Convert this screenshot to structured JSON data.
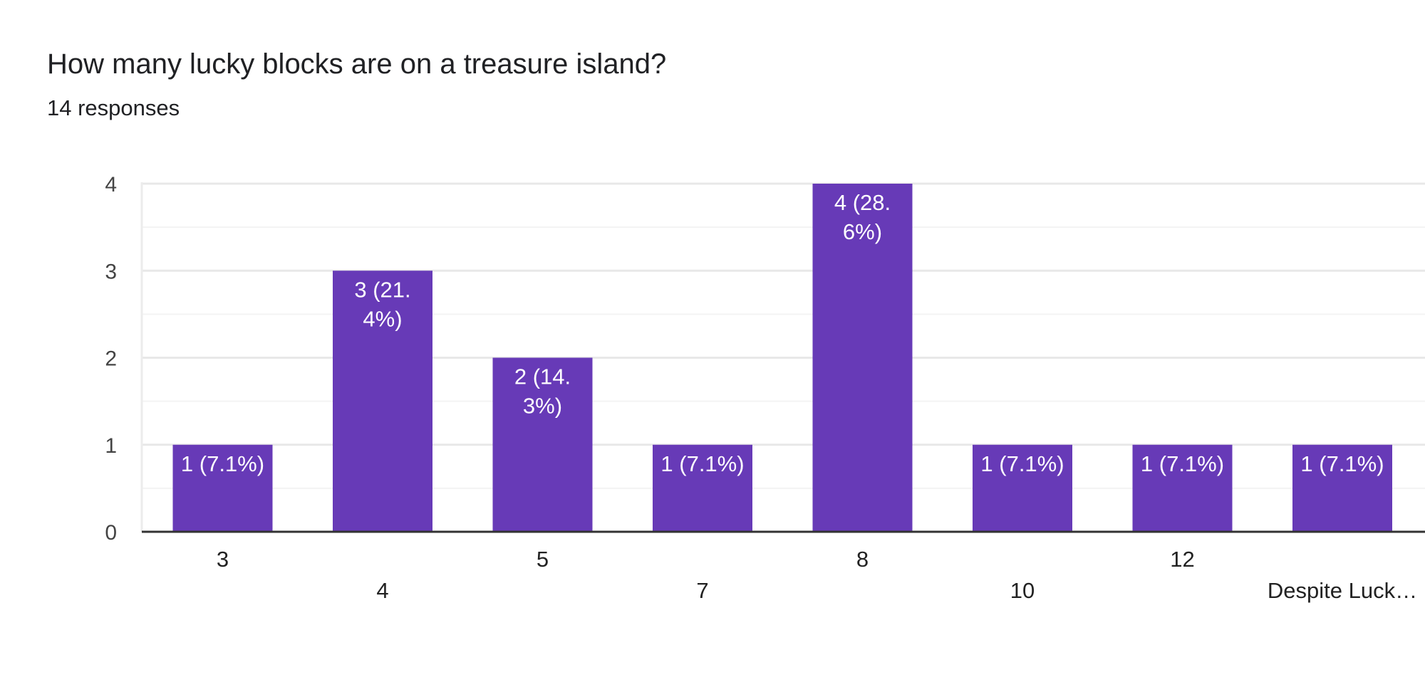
{
  "question": {
    "title": "How many lucky blocks are on a treasure island?",
    "responses": "14 responses"
  },
  "chart_data": {
    "type": "bar",
    "title": "How many lucky blocks are on a treasure island?",
    "subtitle": "14 responses",
    "categories": [
      "3",
      "4",
      "5",
      "7",
      "8",
      "10",
      "12",
      "Despite Luck…"
    ],
    "values": [
      1,
      3,
      2,
      1,
      4,
      1,
      1,
      1
    ],
    "data_labels": [
      [
        "1 (7.1%)"
      ],
      [
        "3 (21.",
        "4%)"
      ],
      [
        "2 (14.",
        "3%)"
      ],
      [
        "1 (7.1%)"
      ],
      [
        "4 (28.",
        "6%)"
      ],
      [
        "1 (7.1%)"
      ],
      [
        "1 (7.1%)"
      ],
      [
        "1 (7.1%)"
      ]
    ],
    "ylim": [
      0,
      4
    ],
    "yticks": [
      0,
      1,
      2,
      3,
      4
    ],
    "xlabel": "",
    "ylabel": "",
    "grid": true,
    "bar_color": "#673ab7",
    "label_color": "#ffffff"
  }
}
